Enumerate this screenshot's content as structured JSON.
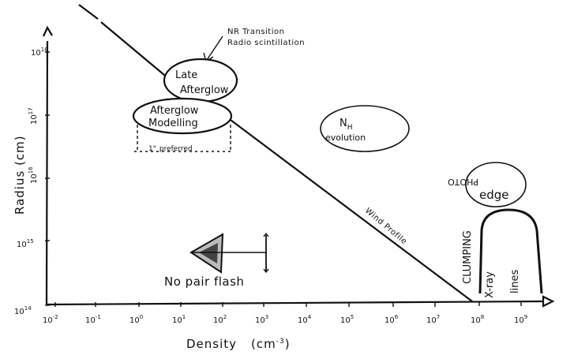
{
  "x_axis": {
    "title": "Density",
    "unit": "(cm",
    "unit_exp": "-3",
    "unit_close": ")",
    "ticks": [
      {
        "base": "10",
        "exp": "-2"
      },
      {
        "base": "10",
        "exp": "-1"
      },
      {
        "base": "10",
        "exp": "0"
      },
      {
        "base": "10",
        "exp": "1"
      },
      {
        "base": "10",
        "exp": "2"
      },
      {
        "base": "10",
        "exp": "3"
      },
      {
        "base": "10",
        "exp": "4"
      },
      {
        "base": "10",
        "exp": "5"
      },
      {
        "base": "10",
        "exp": "6"
      },
      {
        "base": "10",
        "exp": "7"
      },
      {
        "base": "10",
        "exp": "8"
      },
      {
        "base": "10",
        "exp": "9"
      }
    ]
  },
  "y_axis": {
    "title": "Radius (cm)",
    "ticks": [
      {
        "base": "10",
        "exp": "14"
      },
      {
        "base": "10",
        "exp": "15"
      },
      {
        "base": "10",
        "exp": "16"
      },
      {
        "base": "10",
        "exp": "17"
      },
      {
        "base": "10",
        "exp": "18"
      }
    ]
  },
  "labels": {
    "nr_transition": "NR Transition",
    "radio_scintillation": "Radio scintillation",
    "late_afterglow_1": "Late",
    "late_afterglow_2": "Afterglow",
    "afterglow_modelling_1": "Afterglow",
    "afterglow_modelling_2": "Modelling",
    "preferred": "preferred",
    "preferred_prefix": "1\"",
    "nh_evolution_1": "N",
    "nh_sub": "H",
    "nh_evolution_2": "evolution",
    "photo_edge_1": "PHOTO",
    "photo_edge_2": "edge",
    "wind_profile": "Wind Profile",
    "clumping": "CLUMPING",
    "xray_lines_1": "X-ray",
    "xray_lines_2": "lines",
    "no_pair_flash": "No pair flash"
  },
  "colors": {
    "ink": "#111111",
    "paper": "#ffffff",
    "shade": "#555555"
  }
}
